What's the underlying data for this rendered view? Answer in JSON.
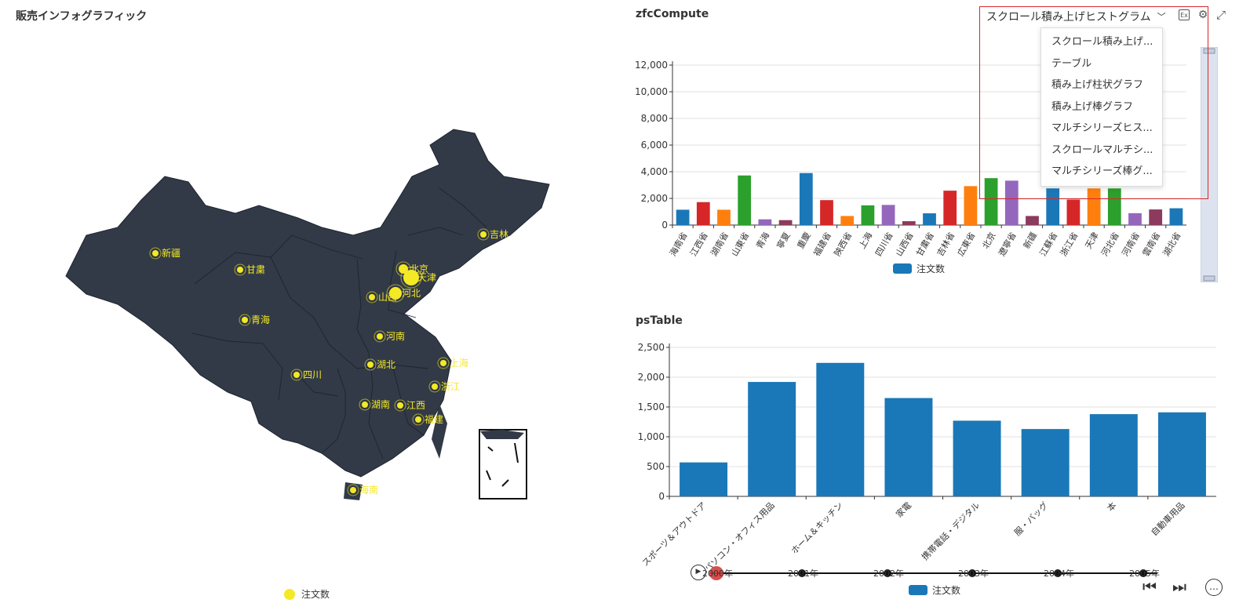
{
  "map": {
    "title": "販売インフォグラフィック",
    "legend_label": "注文数",
    "region_color": "#323a47",
    "label_color": "#f4e925",
    "cities": [
      "新疆",
      "甘粛",
      "青海",
      "吉林",
      "北京",
      "天津",
      "河北",
      "山西",
      "河南",
      "上海",
      "湖北",
      "四川",
      "浙江",
      "湖南",
      "江西",
      "福建",
      "海南"
    ]
  },
  "zfc": {
    "title": "zfcCompute",
    "chart_type_select": "スクロール積み上げヒストグラム",
    "select_caret": "﹀",
    "export_icon": "Ex",
    "settings_icon": "⚙",
    "fullscreen_icon": "⤢",
    "dropdown_items": [
      "スクロール積み上げ...",
      "テーブル",
      "積み上げ柱状グラフ",
      "積み上げ棒グラフ",
      "マルチシリーズヒス...",
      "スクロールマルチシ...",
      "マルチシリーズ棒グ..."
    ],
    "legend_label": "注文数"
  },
  "ps": {
    "title": "psTable",
    "legend_label": "注文数"
  },
  "timeline": {
    "years": [
      "2000年",
      "2001年",
      "2002年",
      "2003年",
      "2004年",
      "2005年"
    ],
    "play_icon": "▶",
    "prev_icon": "⏮",
    "next_icon": "⏭",
    "more_icon": "…"
  },
  "chart_data": [
    {
      "type": "bar",
      "categories": [
        "海南省",
        "江西省",
        "湖南省",
        "山東省",
        "青海",
        "寧夏",
        "重慶",
        "福建省",
        "陝西省",
        "上海",
        "四川省",
        "山西省",
        "甘粛省",
        "吉林省",
        "広東省",
        "北京",
        "遼寧省",
        "新疆",
        "江蘇省",
        "浙江省",
        "天津",
        "河北省",
        "河南省",
        "雲南省",
        "湖北省"
      ],
      "values": [
        1150,
        1720,
        1150,
        3720,
        430,
        370,
        3900,
        1870,
        680,
        1480,
        1510,
        290,
        880,
        2580,
        2920,
        3520,
        3330,
        680,
        2750,
        1910,
        2750,
        2750,
        890,
        1170,
        1260
      ],
      "colors": [
        "#1a78b8",
        "#d62728",
        "#ff7f0e",
        "#2ca02c",
        "#9467bd",
        "#8c3a5e",
        "#1a78b8",
        "#d62728",
        "#ff7f0e",
        "#2ca02c",
        "#9467bd",
        "#8c3a5e",
        "#1a78b8",
        "#d62728",
        "#ff7f0e",
        "#2ca02c",
        "#9467bd",
        "#8c3a5e",
        "#1a78b8",
        "#d62728",
        "#ff7f0e",
        "#2ca02c",
        "#9467bd",
        "#8c3a5e",
        "#1a78b8"
      ],
      "series_name": "注文数",
      "ylim": [
        0,
        12000
      ],
      "yticks": [
        "0",
        "2,000",
        "4,000",
        "6,000",
        "8,000",
        "10,000",
        "12,000"
      ],
      "grid": true
    },
    {
      "type": "bar",
      "categories": [
        "スポーツ＆アウトドア",
        "パソコン・オフィス用品",
        "ホーム＆キッチン",
        "家電",
        "携帯電話・デジタル",
        "服・バッグ",
        "本",
        "自動車用品"
      ],
      "values": [
        570,
        1920,
        2240,
        1650,
        1270,
        1130,
        1380,
        1410
      ],
      "color": "#1a78b8",
      "series_name": "注文数",
      "ylim": [
        0,
        2500
      ],
      "yticks": [
        "0",
        "500",
        "1,000",
        "1,500",
        "2,000",
        "2,500"
      ],
      "grid": true
    }
  ]
}
